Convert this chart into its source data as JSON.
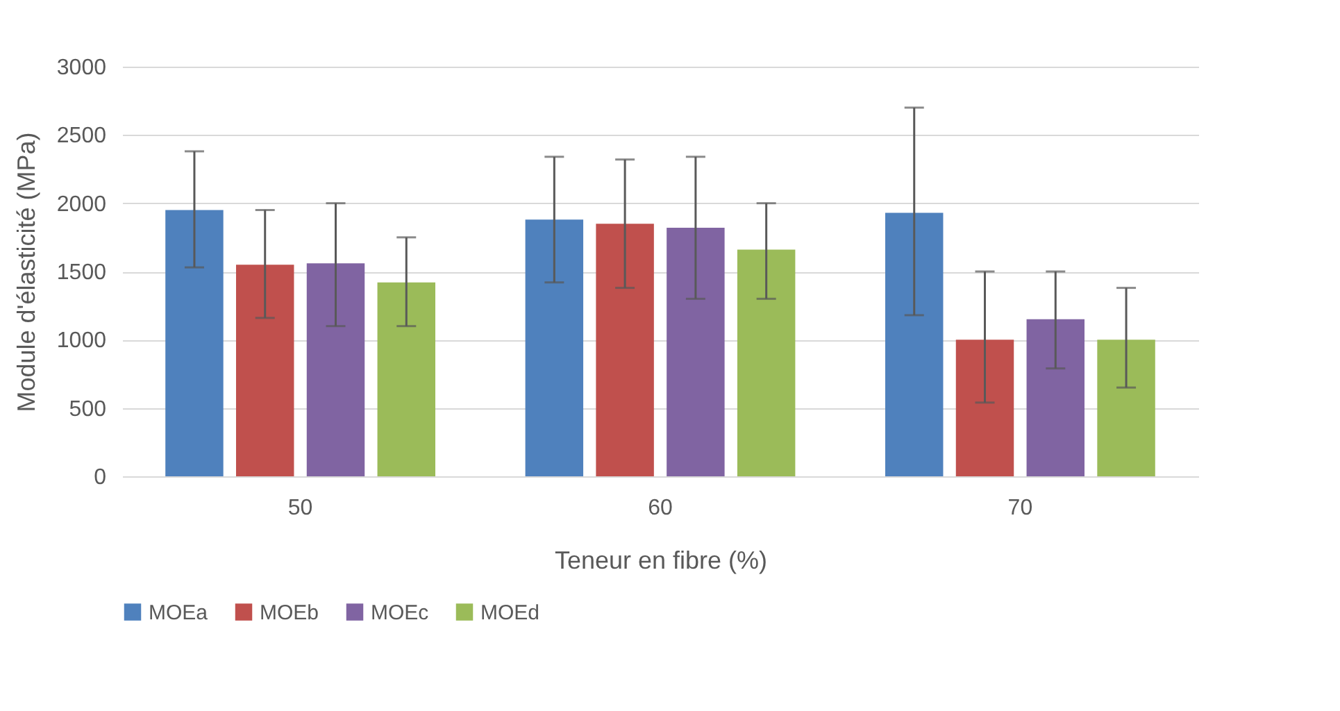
{
  "chart_data": {
    "type": "bar",
    "xlabel": "Teneur en fibre (%)",
    "ylabel": "Module d'élasticité (MPa)",
    "categories": [
      "50",
      "60",
      "70"
    ],
    "series": [
      {
        "name": "MOEa",
        "color": "#4f81bd",
        "values": [
          1950,
          1880,
          1930
        ],
        "errors": [
          [
            1530,
            2380
          ],
          [
            1420,
            2340
          ],
          [
            1180,
            2700
          ]
        ]
      },
      {
        "name": "MOEb",
        "color": "#c0504d",
        "values": [
          1550,
          1850,
          1000
        ],
        "errors": [
          [
            1160,
            1950
          ],
          [
            1380,
            2320
          ],
          [
            540,
            1500
          ]
        ]
      },
      {
        "name": "MOEc",
        "color": "#8064a2",
        "values": [
          1560,
          1820,
          1150
        ],
        "errors": [
          [
            1100,
            2000
          ],
          [
            1300,
            2340
          ],
          [
            790,
            1500
          ]
        ]
      },
      {
        "name": "MOEd",
        "color": "#9bbb59",
        "values": [
          1420,
          1660,
          1000
        ],
        "errors": [
          [
            1100,
            1750
          ],
          [
            1300,
            2000
          ],
          [
            650,
            1380
          ]
        ]
      }
    ],
    "ylim": [
      0,
      3000
    ],
    "yticks": [
      0,
      500,
      1000,
      1500,
      2000,
      2500,
      3000
    ],
    "grid": "y",
    "legend": "bottom"
  }
}
